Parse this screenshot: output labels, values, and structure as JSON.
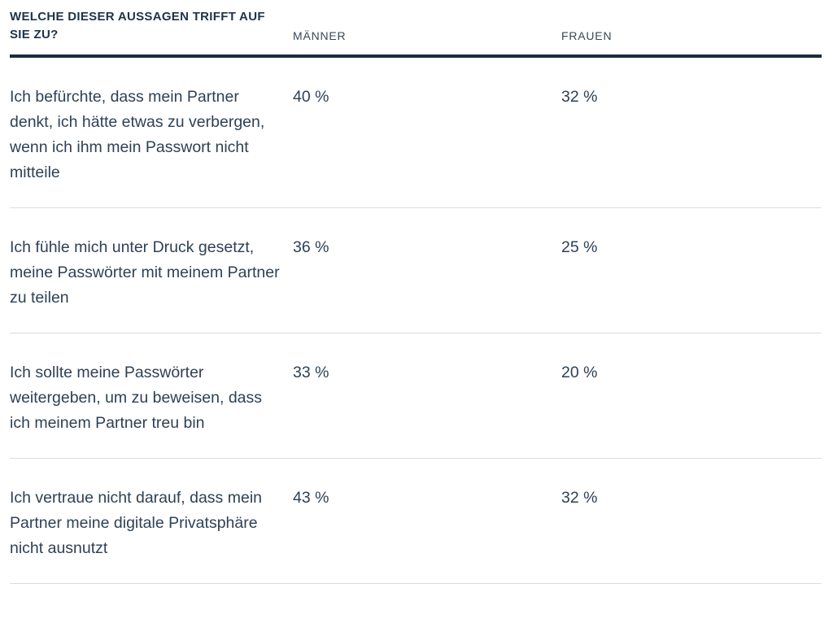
{
  "table": {
    "question_header": "WELCHE DIESER AUSSAGEN TRIFFT AUF SIE ZU?",
    "columns": [
      {
        "key": "maenner",
        "label": "MÄNNER"
      },
      {
        "key": "frauen",
        "label": "FRAUEN"
      }
    ],
    "rows": [
      {
        "statement": "Ich befürchte, dass mein Partner denkt, ich hätte etwas zu verbergen, wenn ich ihm mein Passwort nicht mitteile",
        "maenner": "40 %",
        "frauen": "32 %"
      },
      {
        "statement": "Ich fühle mich unter Druck gesetzt, meine Passwörter mit meinem Partner zu teilen",
        "maenner": "36 %",
        "frauen": "25 %"
      },
      {
        "statement": "Ich sollte meine Passwörter weitergeben, um zu beweisen, dass ich meinem Partner treu bin",
        "maenner": "33 %",
        "frauen": "20 %"
      },
      {
        "statement": "Ich vertraue nicht darauf, dass mein Partner meine digitale Privatsphäre nicht ausnutzt",
        "maenner": "43 %",
        "frauen": "32 %"
      }
    ],
    "colors": {
      "heading": "#1d3349",
      "body_text": "#2e4156",
      "thick_rule": "#1c2c3e",
      "light_rule": "#d9dce0",
      "background": "#ffffff"
    }
  },
  "chart_data": {
    "type": "table",
    "title": "WELCHE DIESER AUSSAGEN TRIFFT AUF SIE ZU?",
    "categories": [
      "Ich befürchte, dass mein Partner denkt, ich hätte etwas zu verbergen, wenn ich ihm mein Passwort nicht mitteile",
      "Ich fühle mich unter Druck gesetzt, meine Passwörter mit meinem Partner zu teilen",
      "Ich sollte meine Passwörter weitergeben, um zu beweisen, dass ich meinem Partner treu bin",
      "Ich vertraue nicht darauf, dass mein Partner meine digitale Privatsphäre nicht ausnutzt"
    ],
    "series": [
      {
        "name": "MÄNNER",
        "values": [
          40,
          36,
          33,
          43
        ]
      },
      {
        "name": "FRAUEN",
        "values": [
          32,
          25,
          20,
          32
        ]
      }
    ],
    "unit": "%",
    "layout": "statements in left column, one value column per series, thick rule under header, thin rules between rows"
  }
}
